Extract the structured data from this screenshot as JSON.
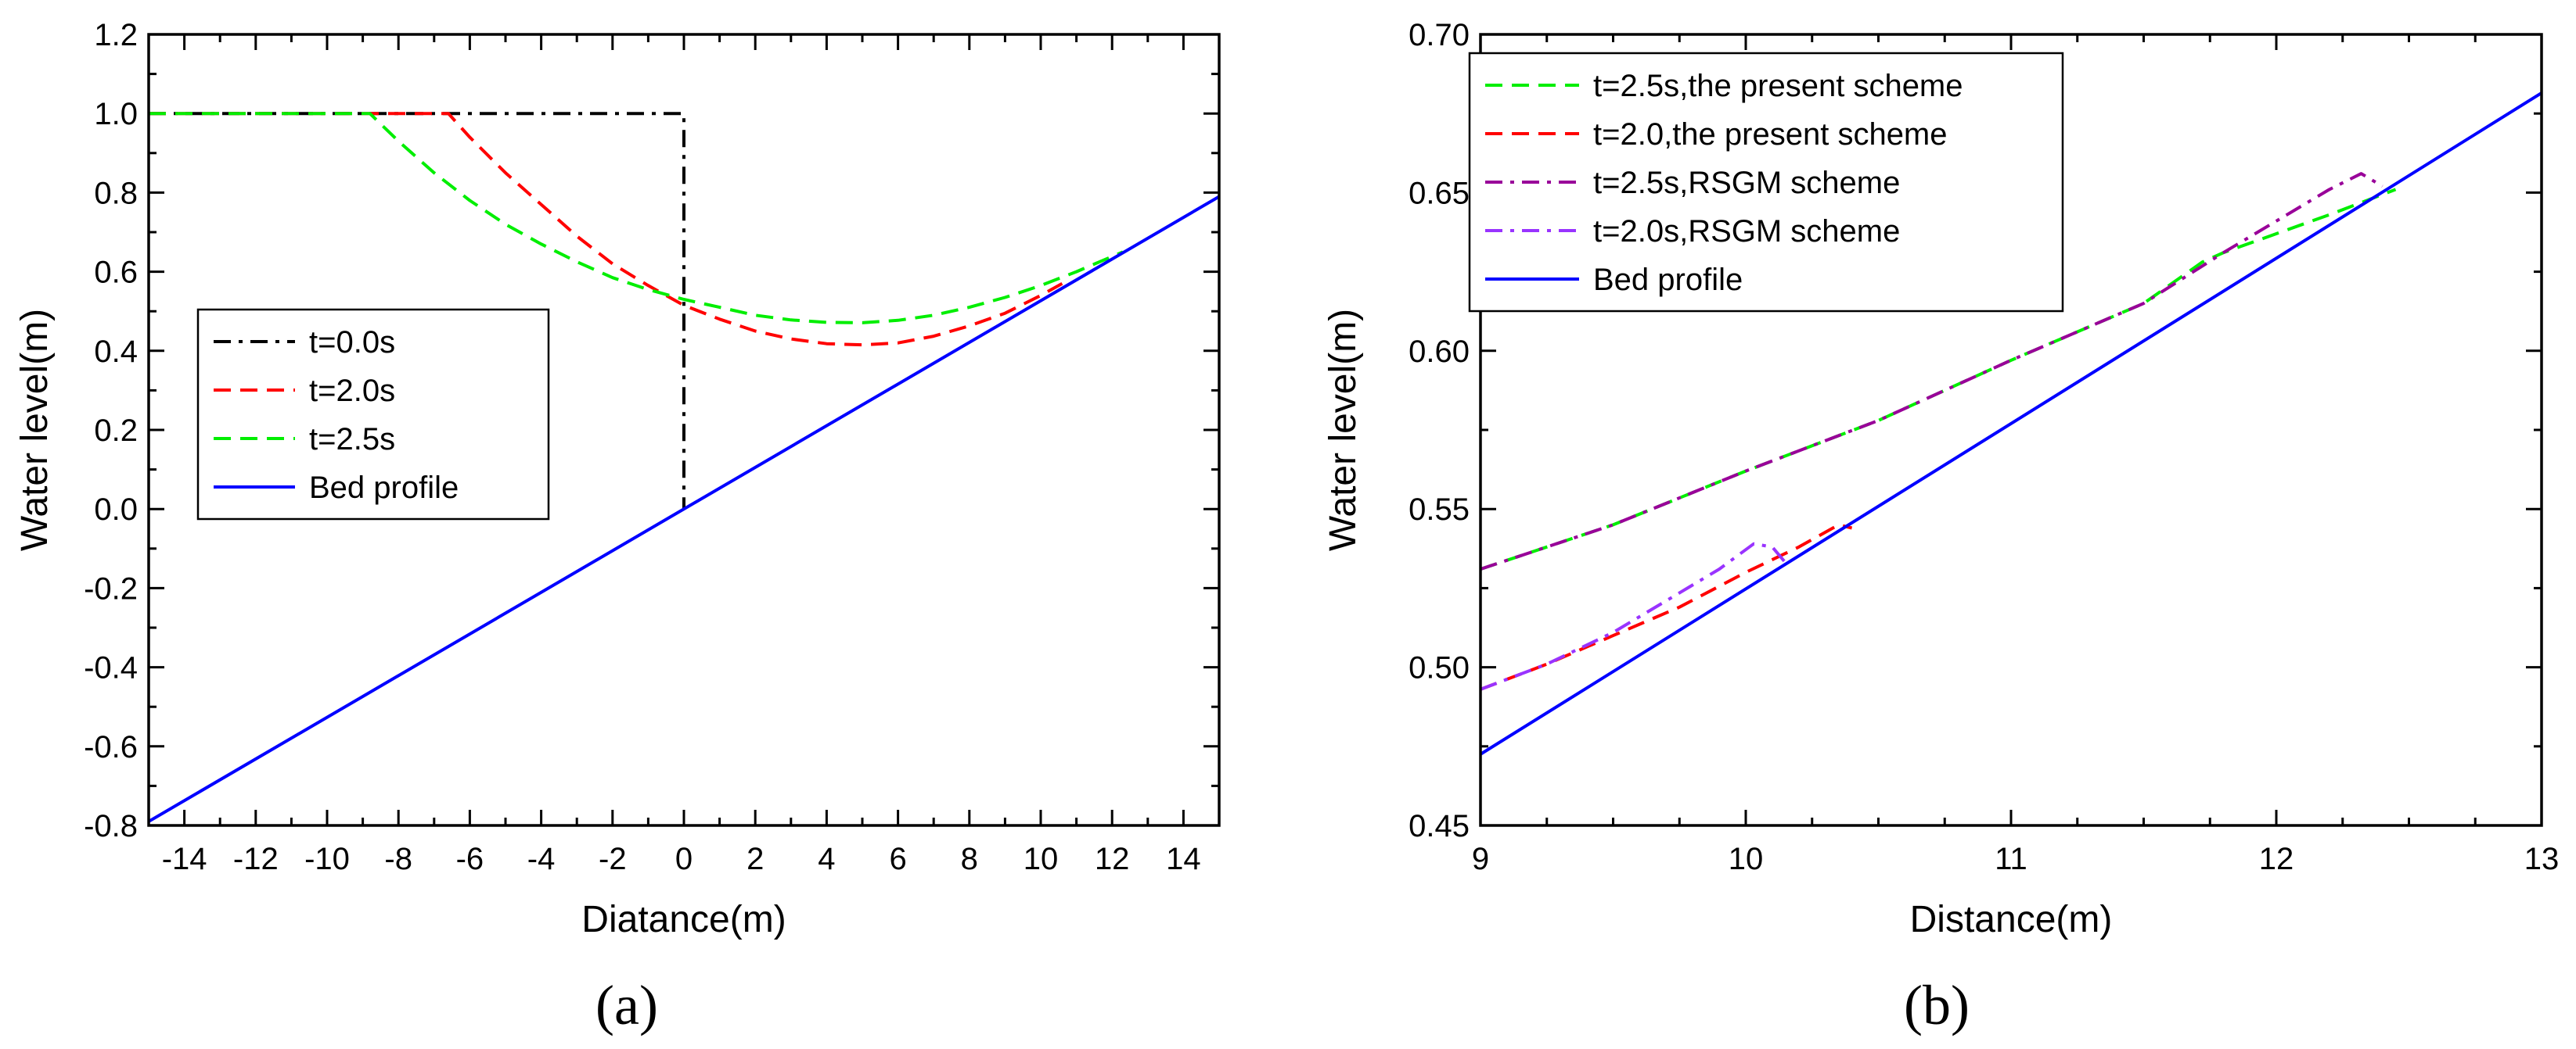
{
  "chart_data": [
    {
      "type": "line",
      "panel_label": "(a)",
      "xlabel": "Diatance(m)",
      "ylabel": "Water level(m)",
      "xlim": [
        -15,
        15
      ],
      "ylim": [
        -0.8,
        1.2
      ],
      "xticks": [
        -14,
        -12,
        -10,
        -8,
        -6,
        -4,
        -2,
        0,
        2,
        4,
        6,
        8,
        10,
        12,
        14
      ],
      "yticks": [
        -0.8,
        -0.6,
        -0.4,
        -0.2,
        0.0,
        0.2,
        0.4,
        0.6,
        0.8,
        1.0,
        1.2
      ],
      "xtick_labels": [
        "-14",
        "-12",
        "-10",
        "-8",
        "-6",
        "-4",
        "-2",
        "0",
        "2",
        "4",
        "6",
        "8",
        "10",
        "12",
        "14"
      ],
      "ytick_labels": [
        "-0.8",
        "-0.6",
        "-0.4",
        "-0.2",
        "0.0",
        "0.2",
        "0.4",
        "0.6",
        "0.8",
        "1.0",
        "1.2"
      ],
      "legend_position": "center-left",
      "grid": false,
      "series": [
        {
          "name": "t=0.0s",
          "color": "#000000",
          "style": "dashdot",
          "x": [
            -15,
            0,
            0
          ],
          "y": [
            1.0,
            1.0,
            0.0
          ]
        },
        {
          "name": "t=2.0s",
          "color": "#ff0000",
          "style": "dashed",
          "x": [
            -15,
            -6.6,
            -6,
            -5,
            -4,
            -3,
            -2,
            -1,
            0,
            1,
            2,
            3,
            4,
            5,
            6,
            7,
            8,
            9,
            10,
            10.6
          ],
          "y": [
            1.0,
            1.0,
            0.94,
            0.85,
            0.77,
            0.69,
            0.62,
            0.565,
            0.515,
            0.48,
            0.45,
            0.43,
            0.418,
            0.415,
            0.42,
            0.437,
            0.463,
            0.495,
            0.54,
            0.57
          ]
        },
        {
          "name": "t=2.5s",
          "color": "#00ee00",
          "style": "dashed",
          "x": [
            -15,
            -8.8,
            -8,
            -7,
            -6,
            -5,
            -4,
            -3,
            -2,
            -1,
            0,
            1,
            2,
            3,
            4,
            5,
            6,
            7,
            8,
            9,
            10,
            11,
            12.3
          ],
          "y": [
            1.0,
            1.0,
            0.93,
            0.85,
            0.78,
            0.72,
            0.67,
            0.625,
            0.585,
            0.555,
            0.53,
            0.51,
            0.49,
            0.478,
            0.472,
            0.471,
            0.477,
            0.49,
            0.51,
            0.535,
            0.565,
            0.6,
            0.65
          ]
        },
        {
          "name": "Bed profile",
          "color": "#0000ff",
          "style": "solid",
          "x": [
            -15,
            15
          ],
          "y": [
            -0.79,
            0.79
          ]
        }
      ]
    },
    {
      "type": "line",
      "panel_label": "(b)",
      "xlabel": "Distance(m)",
      "ylabel": "Water level(m)",
      "xlim": [
        9,
        13
      ],
      "ylim": [
        0.45,
        0.7
      ],
      "xticks": [
        9,
        10,
        11,
        12,
        13
      ],
      "yticks": [
        0.45,
        0.5,
        0.55,
        0.6,
        0.65,
        0.7
      ],
      "xtick_labels": [
        "9",
        "10",
        "11",
        "12",
        "13"
      ],
      "ytick_labels": [
        "0.45",
        "0.50",
        "0.55",
        "0.60",
        "0.65",
        "0.70"
      ],
      "legend_position": "top-left",
      "grid": false,
      "series": [
        {
          "name": "t=2.5s,the present scheme",
          "color": "#00ee00",
          "style": "dashed",
          "x": [
            9,
            9.5,
            10,
            10.5,
            11,
            11.5,
            11.72,
            11.8,
            12,
            12.2,
            12.45
          ],
          "y": [
            0.531,
            0.545,
            0.562,
            0.578,
            0.597,
            0.615,
            0.628,
            0.631,
            0.637,
            0.643,
            0.651
          ]
        },
        {
          "name": "t=2.0,the present scheme",
          "color": "#ff0000",
          "style": "dashed",
          "x": [
            9,
            9.25,
            9.5,
            9.75,
            10,
            10.2,
            10.35,
            10.4
          ],
          "y": [
            0.493,
            0.501,
            0.51,
            0.519,
            0.53,
            0.538,
            0.545,
            0.544
          ]
        },
        {
          "name": "t=2.5s,RSGM scheme",
          "color": "#990099",
          "style": "dashdot",
          "x": [
            9,
            9.5,
            10,
            10.5,
            11,
            11.5,
            11.8,
            12.0,
            12.2,
            12.32,
            12.4
          ],
          "y": [
            0.531,
            0.545,
            0.562,
            0.578,
            0.597,
            0.615,
            0.631,
            0.641,
            0.651,
            0.656,
            0.652
          ]
        },
        {
          "name": "t=2.0s,RSGM scheme",
          "color": "#9933ff",
          "style": "dashdot",
          "x": [
            9,
            9.25,
            9.5,
            9.7,
            9.9,
            10.03,
            10.1,
            10.15
          ],
          "y": [
            0.493,
            0.501,
            0.511,
            0.521,
            0.531,
            0.539,
            0.538,
            0.533
          ]
        },
        {
          "name": "Bed profile",
          "color": "#0000ff",
          "style": "solid",
          "x": [
            9,
            13
          ],
          "y": [
            0.4725,
            0.6815
          ]
        }
      ]
    }
  ]
}
